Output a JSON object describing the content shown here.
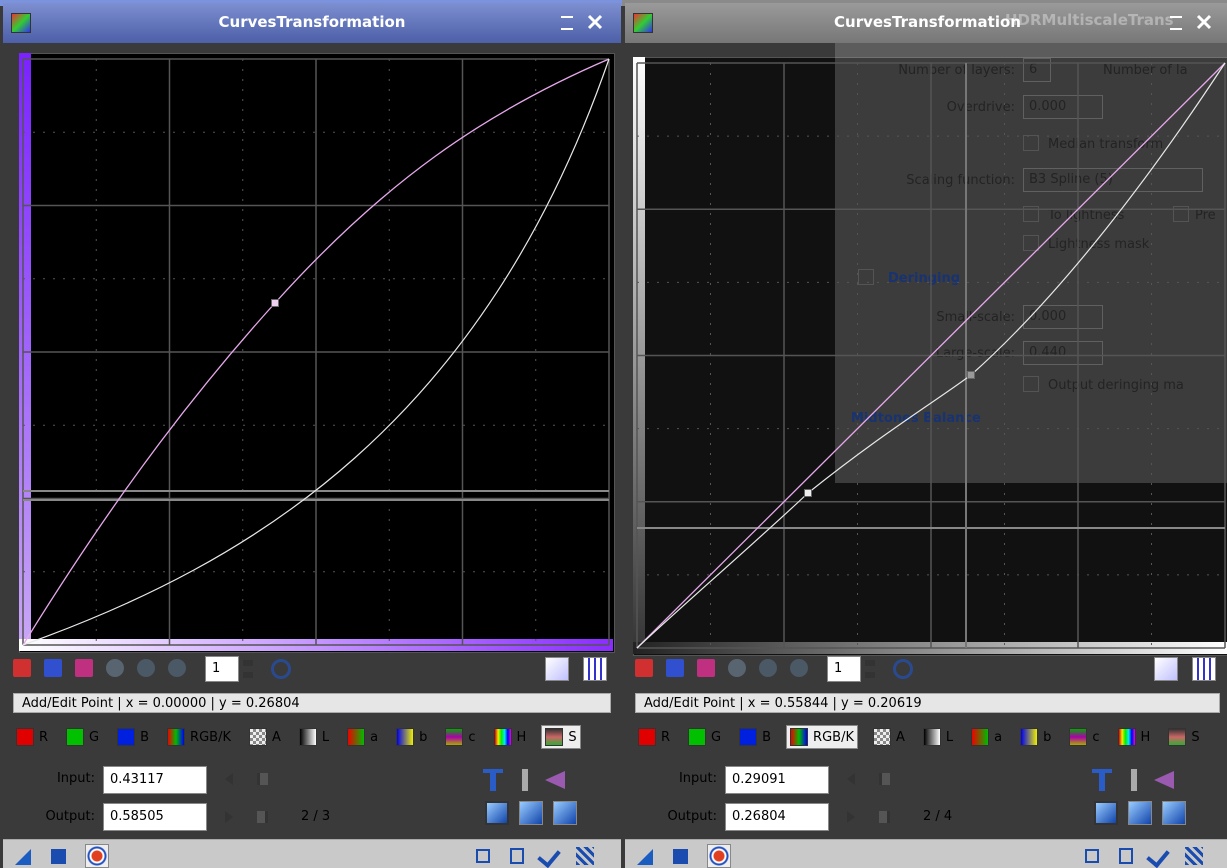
{
  "windows": [
    {
      "title": "CurvesTransformation",
      "zoom": "1",
      "status": "Add/Edit Point | x = 0.00000 | y = 0.26804",
      "channels": [
        "R",
        "G",
        "B",
        "RGB/K",
        "A",
        "L",
        "a",
        "b",
        "c",
        "H",
        "S"
      ],
      "input_label": "Input:",
      "input_value": "0.43117",
      "output_label": "Output:",
      "output_value": "0.58505",
      "point_counter": "2 / 3"
    },
    {
      "title": "CurvesTransformation",
      "zoom": "1",
      "status": "Add/Edit Point | x = 0.55844 | y = 0.20619",
      "channels": [
        "R",
        "G",
        "B",
        "RGB/K",
        "A",
        "L",
        "a",
        "b",
        "c",
        "H",
        "S"
      ],
      "input_label": "Input:",
      "input_value": "0.29091",
      "output_label": "Output:",
      "output_value": "0.26804",
      "point_counter": "2 / 4"
    }
  ],
  "background_dialog": {
    "title": "HDRMultiscaleTrans",
    "layers_label": "Number of layers:",
    "layers_value": "6",
    "layers_label_2": "Number of la",
    "overdrive_label": "Overdrive:",
    "overdrive_value": "0.000",
    "median_transform": "Median transform",
    "scaling_label": "Scaling function:",
    "scaling_value": "B3 Spline (5)",
    "to_lightness": "To lightness",
    "preserve": "Pre",
    "lightness_mask": "Lightness mask",
    "deringing": "Deringing",
    "small_scale_label": "Small-scale:",
    "small_scale_value": "0.000",
    "large_scale_label": "Large-scale:",
    "large_scale_value": "0.440",
    "output_deringing": "Output deringing ma",
    "midtones_balance": "Midtones Balance"
  }
}
